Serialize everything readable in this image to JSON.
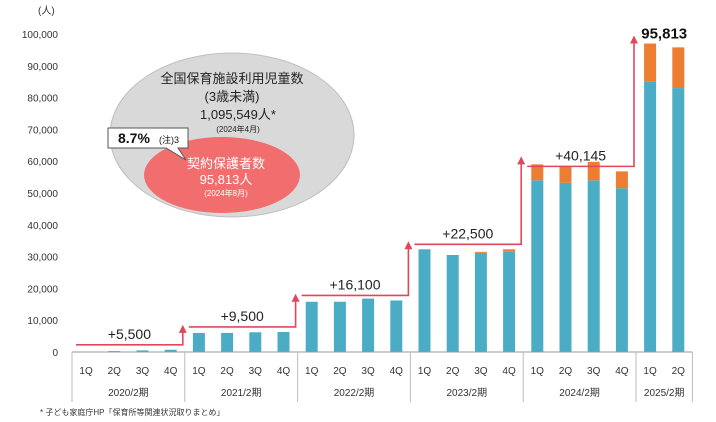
{
  "chart_data": {
    "type": "bar",
    "stacked": true,
    "unit_label": "(人)",
    "ylim": [
      0,
      100000
    ],
    "yticks": [
      "0",
      "10,000",
      "20,000",
      "30,000",
      "40,000",
      "50,000",
      "60,000",
      "70,000",
      "80,000",
      "90,000",
      "100,000"
    ],
    "categories": [
      "1Q",
      "2Q",
      "3Q",
      "4Q",
      "1Q",
      "2Q",
      "3Q",
      "4Q",
      "1Q",
      "2Q",
      "3Q",
      "4Q",
      "1Q",
      "2Q",
      "3Q",
      "4Q",
      "1Q",
      "2Q",
      "3Q",
      "4Q",
      "1Q",
      "2Q"
    ],
    "periods": [
      {
        "label": "2020/2期",
        "count": 4
      },
      {
        "label": "2021/2期",
        "count": 4
      },
      {
        "label": "2022/2期",
        "count": 4
      },
      {
        "label": "2023/2期",
        "count": 4
      },
      {
        "label": "2024/2期",
        "count": 4
      },
      {
        "label": "2025/2期",
        "count": 2
      }
    ],
    "series": [
      {
        "color": "#4bacc6",
        "values": [
          0,
          300,
          500,
          700,
          6000,
          6000,
          6200,
          6300,
          15800,
          15800,
          16800,
          16200,
          32300,
          30500,
          31200,
          31500,
          54000,
          53200,
          54000,
          51500,
          85000,
          83000
        ]
      },
      {
        "color": "#ed7d31",
        "values": [
          0,
          0,
          0,
          0,
          0,
          0,
          0,
          0,
          0,
          0,
          0,
          0,
          0,
          0,
          300,
          800,
          5000,
          5200,
          5800,
          5300,
          12000,
          12800
        ]
      }
    ],
    "increments": [
      "+5,500",
      "+9,500",
      "+16,100",
      "+22,500",
      "+40,145"
    ],
    "last_label": "95,813",
    "inset": {
      "outer_title": "全国保育施設利用児童数",
      "outer_sub": "(3歳未満)",
      "outer_value": "1,095,549人*",
      "outer_date": "(2024年4月)",
      "inner_title": "契約保護者数",
      "inner_value": "95,813人",
      "inner_date": "(2024年8月)",
      "callout_value": "8.7%",
      "callout_note": "(注)3"
    },
    "footnote": "* 子ども家庭庁HP「保育所等関連状況取りまとめ」"
  }
}
